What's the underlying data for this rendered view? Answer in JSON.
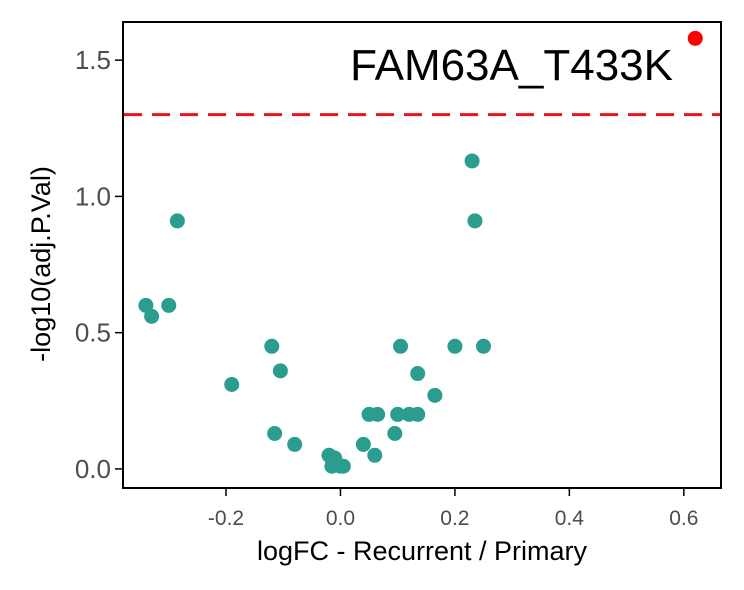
{
  "chart_data": {
    "type": "scatter",
    "xlabel": "logFC - Recurrent / Primary",
    "ylabel": "-log10(adj.P.Val)",
    "xlim": [
      -0.38,
      0.665
    ],
    "ylim": [
      -0.07,
      1.64
    ],
    "x_ticks": [
      -0.2,
      0.0,
      0.2,
      0.4,
      0.6
    ],
    "x_tick_labels": [
      "-0.2",
      "0.0",
      "0.2",
      "0.4",
      "0.6"
    ],
    "y_ticks": [
      0.0,
      0.5,
      1.0,
      1.5
    ],
    "y_tick_labels": [
      "0.0",
      "0.5",
      "1.0",
      "1.5"
    ],
    "threshold_y": 1.3,
    "threshold_color": "#e8141b",
    "point_color": "#2a9d8f",
    "highlight_color": "#ff0000",
    "highlight": {
      "label": "FAM63A_T433K",
      "x": 0.62,
      "y": 1.58
    },
    "points": [
      {
        "x": -0.34,
        "y": 0.6
      },
      {
        "x": -0.33,
        "y": 0.56
      },
      {
        "x": -0.3,
        "y": 0.6
      },
      {
        "x": -0.285,
        "y": 0.91
      },
      {
        "x": -0.19,
        "y": 0.31
      },
      {
        "x": -0.12,
        "y": 0.45
      },
      {
        "x": -0.115,
        "y": 0.13
      },
      {
        "x": -0.105,
        "y": 0.36
      },
      {
        "x": -0.08,
        "y": 0.09
      },
      {
        "x": -0.02,
        "y": 0.05
      },
      {
        "x": -0.015,
        "y": 0.01
      },
      {
        "x": -0.01,
        "y": 0.04
      },
      {
        "x": 0.0,
        "y": 0.01
      },
      {
        "x": 0.005,
        "y": 0.01
      },
      {
        "x": 0.04,
        "y": 0.09
      },
      {
        "x": 0.05,
        "y": 0.2
      },
      {
        "x": 0.06,
        "y": 0.05
      },
      {
        "x": 0.065,
        "y": 0.2
      },
      {
        "x": 0.095,
        "y": 0.13
      },
      {
        "x": 0.1,
        "y": 0.2
      },
      {
        "x": 0.105,
        "y": 0.45
      },
      {
        "x": 0.12,
        "y": 0.2
      },
      {
        "x": 0.135,
        "y": 0.2
      },
      {
        "x": 0.135,
        "y": 0.35
      },
      {
        "x": 0.165,
        "y": 0.27
      },
      {
        "x": 0.2,
        "y": 0.45
      },
      {
        "x": 0.23,
        "y": 1.13
      },
      {
        "x": 0.235,
        "y": 0.91
      },
      {
        "x": 0.25,
        "y": 0.45
      }
    ]
  }
}
